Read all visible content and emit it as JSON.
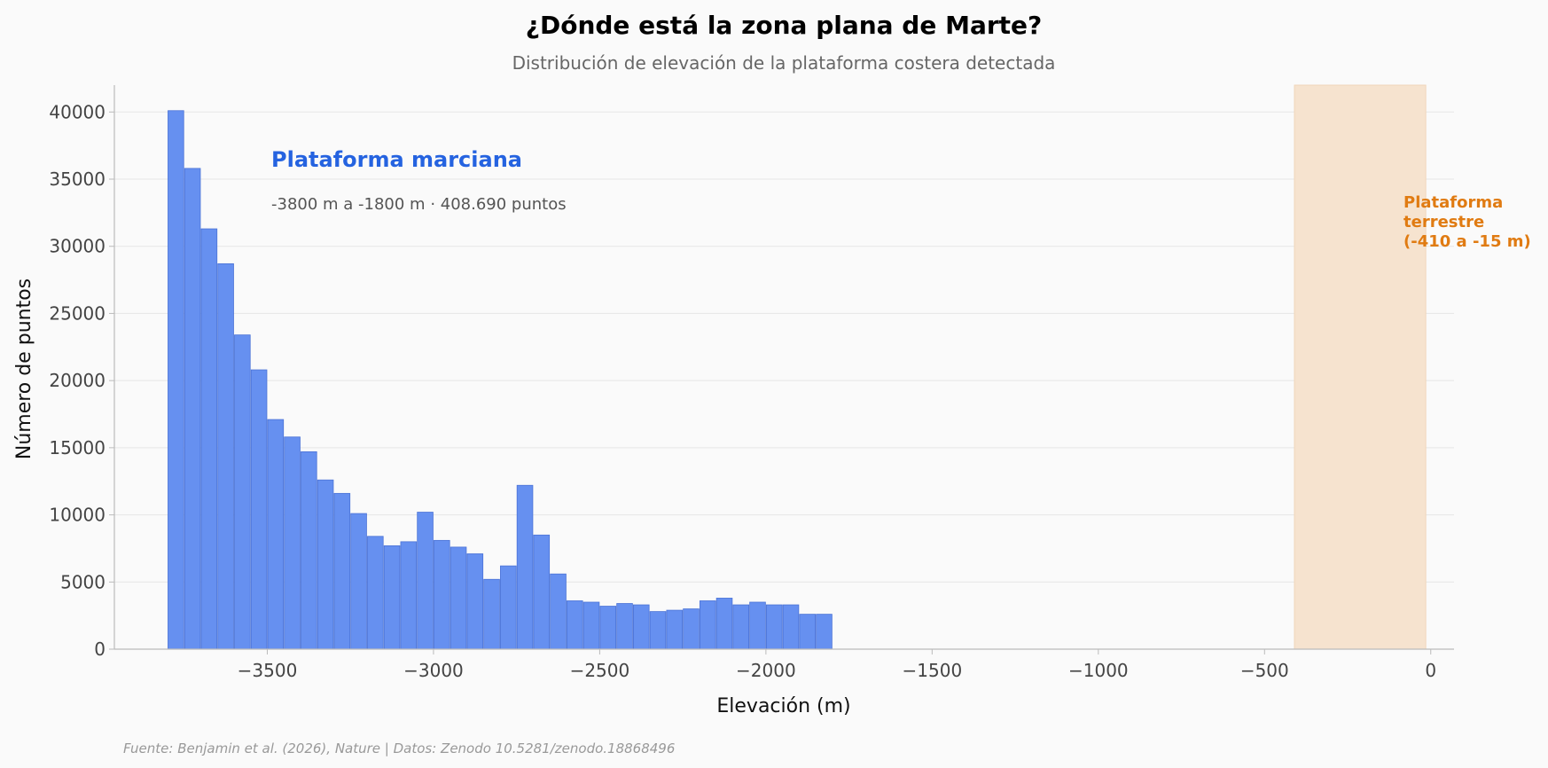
{
  "chart_data": {
    "type": "bar",
    "title": "¿Dónde está la zona plana de Marte?",
    "subtitle": "Distribución de elevación de la plataforma costera detectada",
    "xlabel": "Elevación (m)",
    "ylabel": "Número de puntos",
    "xlim": [
      -3960,
      70
    ],
    "ylim": [
      0,
      42000
    ],
    "xticks": [
      -3500,
      -3000,
      -2500,
      -2000,
      -1500,
      -1000,
      -500,
      0
    ],
    "xtick_labels": [
      "−3500",
      "−3000",
      "−2500",
      "−2000",
      "−1500",
      "−1000",
      "−500",
      "0"
    ],
    "yticks": [
      0,
      5000,
      10000,
      15000,
      20000,
      25000,
      30000,
      35000,
      40000
    ],
    "ytick_labels": [
      "0",
      "5000",
      "10000",
      "15000",
      "20000",
      "25000",
      "30000",
      "35000",
      "40000"
    ],
    "grid": "horizontal",
    "bin_width": 50,
    "bin_start": [
      -3800,
      -3750,
      -3700,
      -3650,
      -3600,
      -3550,
      -3500,
      -3450,
      -3400,
      -3350,
      -3300,
      -3250,
      -3200,
      -3150,
      -3100,
      -3050,
      -3000,
      -2950,
      -2900,
      -2850,
      -2800,
      -2750,
      -2700,
      -2650,
      -2600,
      -2550,
      -2500,
      -2450,
      -2400,
      -2350,
      -2300,
      -2250,
      -2200,
      -2150,
      -2100,
      -2050,
      -2000,
      -1950,
      -1900,
      -1850
    ],
    "values": [
      40100,
      35800,
      31300,
      28700,
      23400,
      20800,
      17100,
      15800,
      14700,
      12600,
      11600,
      10100,
      8400,
      7700,
      8000,
      10200,
      8100,
      7600,
      7100,
      5200,
      6200,
      12200,
      8500,
      5600,
      3600,
      3500,
      3200,
      3400,
      3300,
      2800,
      2900,
      3000,
      3600,
      3800,
      3300,
      3500,
      3300,
      3300,
      2600,
      2600
    ],
    "bar_color": "#6690f0",
    "bar_edge_color": "#4a72d6",
    "band": {
      "x0": -410,
      "x1": -15,
      "color": "#f6e3cf",
      "label_lines": [
        "Plataforma",
        "terrestre",
        "(-410 a -15 m)"
      ],
      "label_color": "#e07b12"
    },
    "annotation": {
      "title": "Plataforma marciana",
      "title_color": "#2563e0",
      "subtitle": "-3800 m a -1800 m · 408.690 puntos"
    },
    "source": "Fuente: Benjamin et al. (2026), Nature | Datos: Zenodo 10.5281/zenodo.18868496"
  }
}
